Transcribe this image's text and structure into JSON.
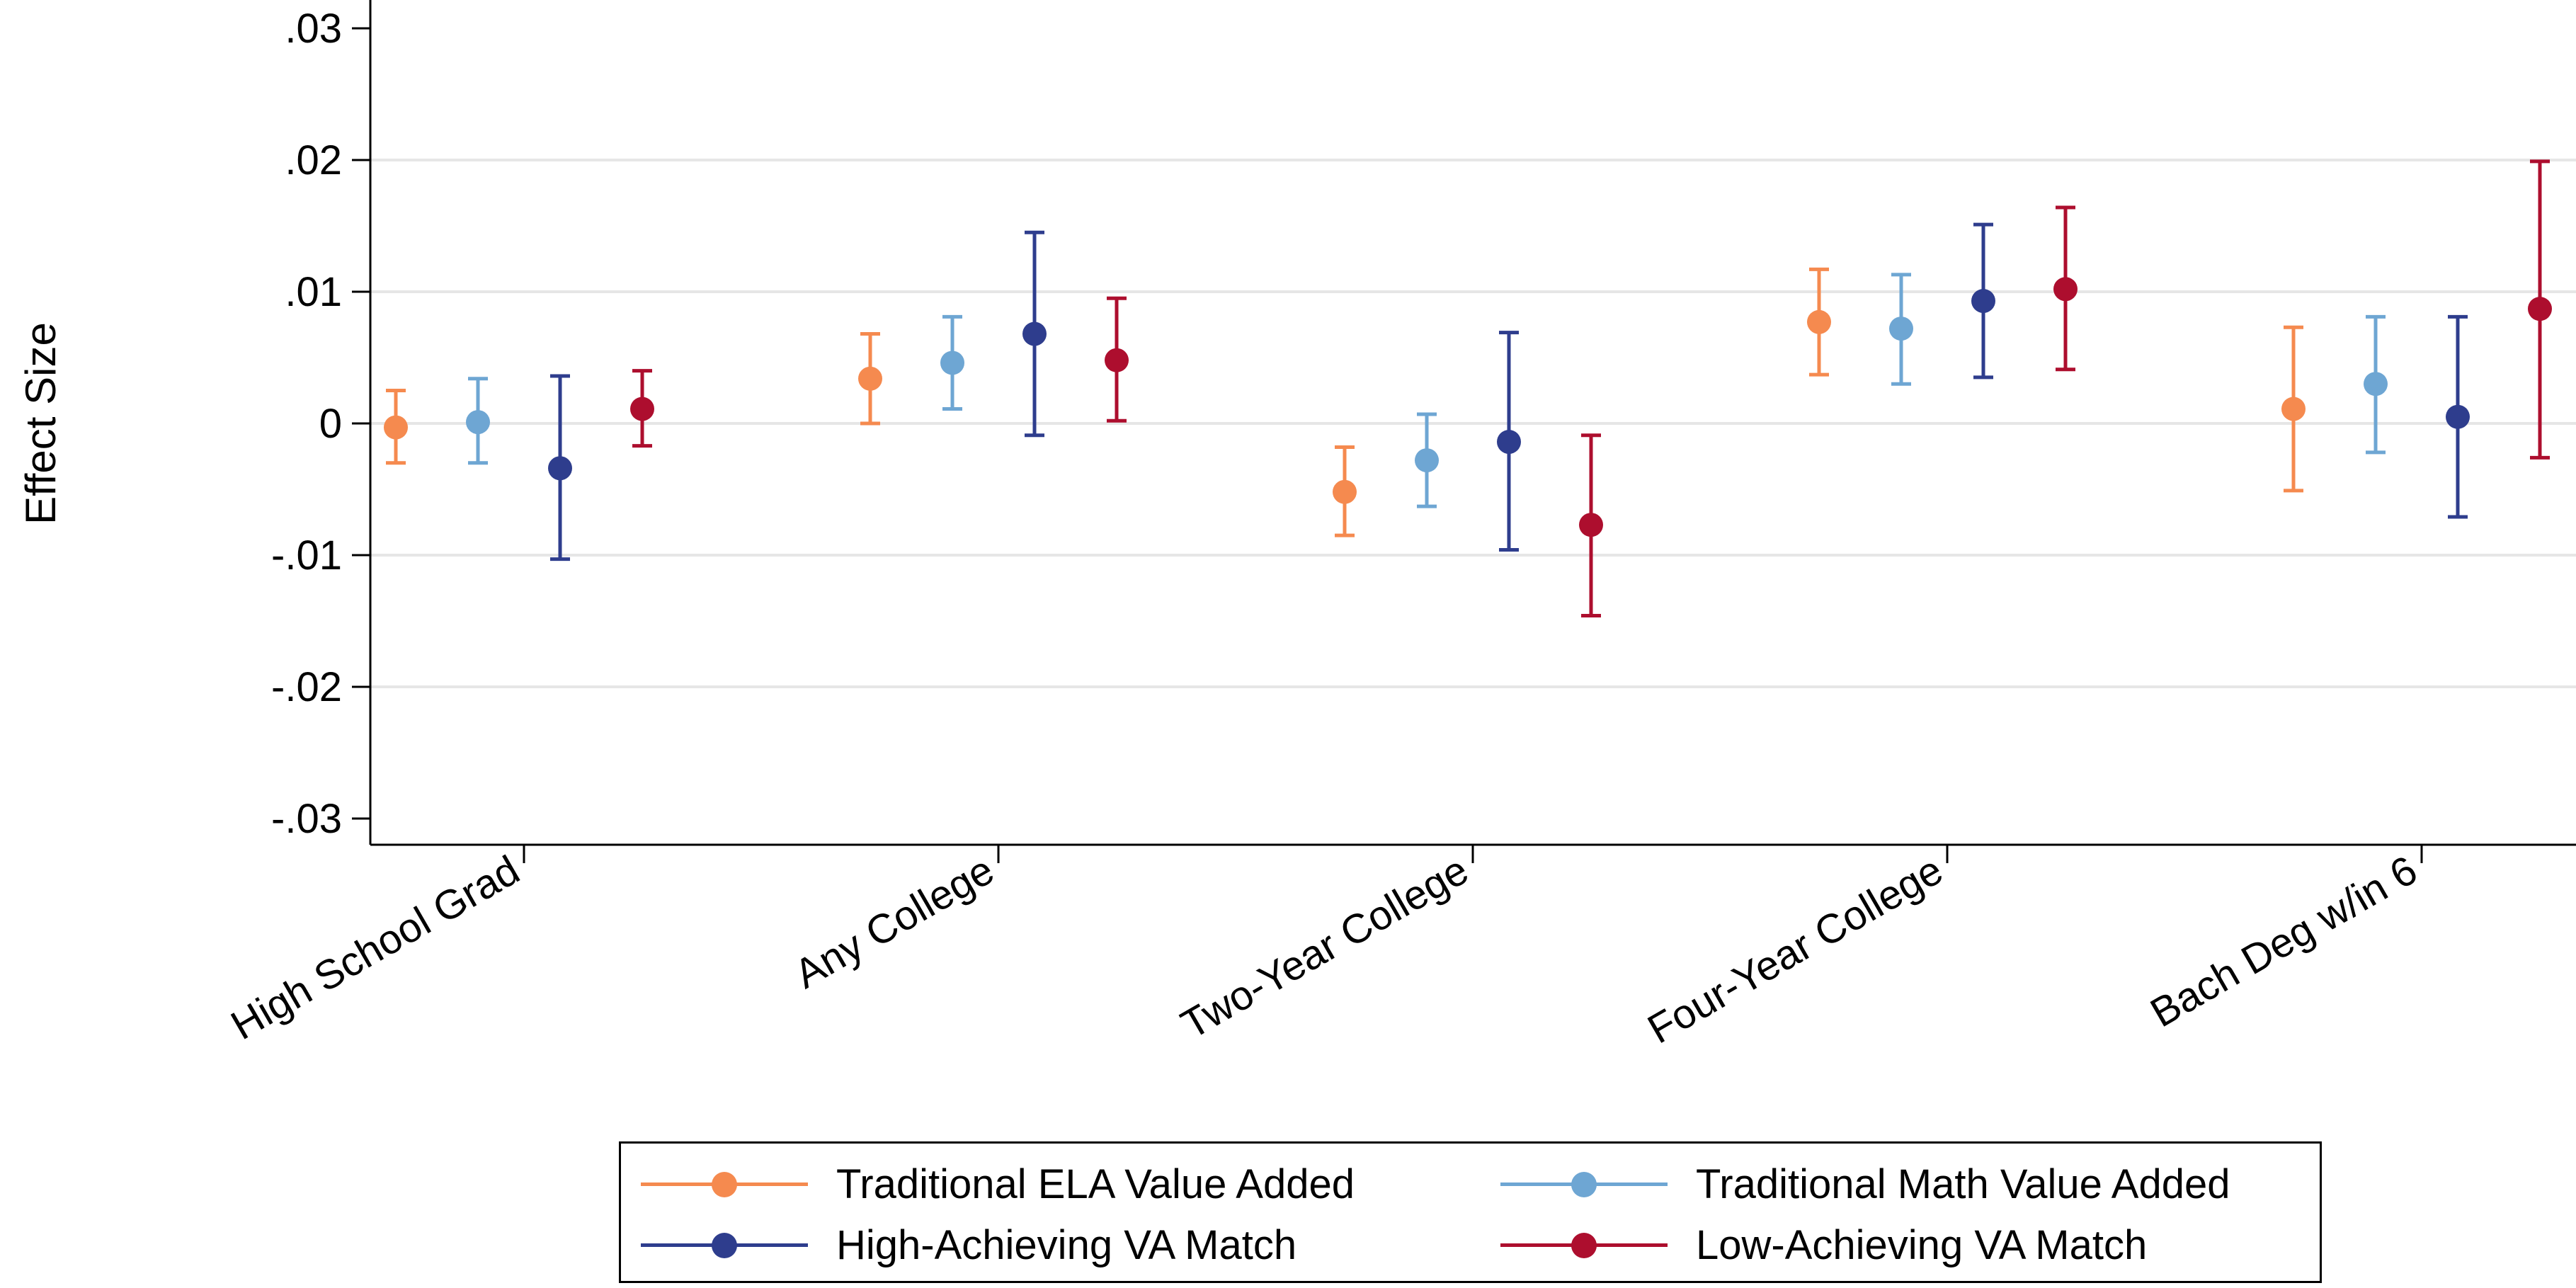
{
  "chart_data": {
    "type": "scatter",
    "subtype": "point-estimate-with-error-bars",
    "title": "",
    "xlabel": "",
    "ylabel": "Effect Size",
    "categories": [
      "High School Grad",
      "Any College",
      "Two-Year College",
      "Four-Year College",
      "Bach Deg w/in 6"
    ],
    "ylim": [
      -0.032,
      0.032
    ],
    "yticks": [
      0.03,
      0.02,
      0.01,
      0,
      -0.01,
      -0.02,
      -0.03
    ],
    "ytick_labels": [
      ".03",
      ".02",
      ".01",
      "0",
      "-.01",
      "-.02",
      "-.03"
    ],
    "grid": true,
    "legend_position": "bottom",
    "series": [
      {
        "name": "Traditional ELA Value Added",
        "color": "#f58a4f",
        "values": [
          -0.0003,
          0.0034,
          -0.0052,
          0.0077,
          0.0011
        ],
        "ci_low": [
          -0.003,
          0.0,
          -0.0085,
          0.0037,
          -0.0051
        ],
        "ci_high": [
          0.0025,
          0.0068,
          -0.0018,
          0.0117,
          0.0073
        ]
      },
      {
        "name": "Traditional Math Value Added",
        "color": "#6ea6d3",
        "values": [
          0.0001,
          0.0046,
          -0.0028,
          0.0072,
          0.003
        ],
        "ci_low": [
          -0.003,
          0.0011,
          -0.0063,
          0.003,
          -0.0022
        ],
        "ci_high": [
          0.0034,
          0.0081,
          0.0007,
          0.0113,
          0.0081
        ]
      },
      {
        "name": "High-Achieving VA Match",
        "color": "#2e3d8d",
        "values": [
          -0.0034,
          0.0068,
          -0.0014,
          0.0093,
          0.0005
        ],
        "ci_low": [
          -0.0103,
          -0.0009,
          -0.0096,
          0.0035,
          -0.0071
        ],
        "ci_high": [
          0.0036,
          0.0145,
          0.0069,
          0.0151,
          0.0081
        ]
      },
      {
        "name": "Low-Achieving VA Match",
        "color": "#ad0e2e",
        "values": [
          0.0011,
          0.0048,
          -0.0077,
          0.0102,
          0.0087
        ],
        "ci_low": [
          -0.0017,
          0.0002,
          -0.0146,
          0.0041,
          -0.0026
        ],
        "ci_high": [
          0.004,
          0.0095,
          -0.0009,
          0.0164,
          0.0199
        ]
      }
    ]
  }
}
